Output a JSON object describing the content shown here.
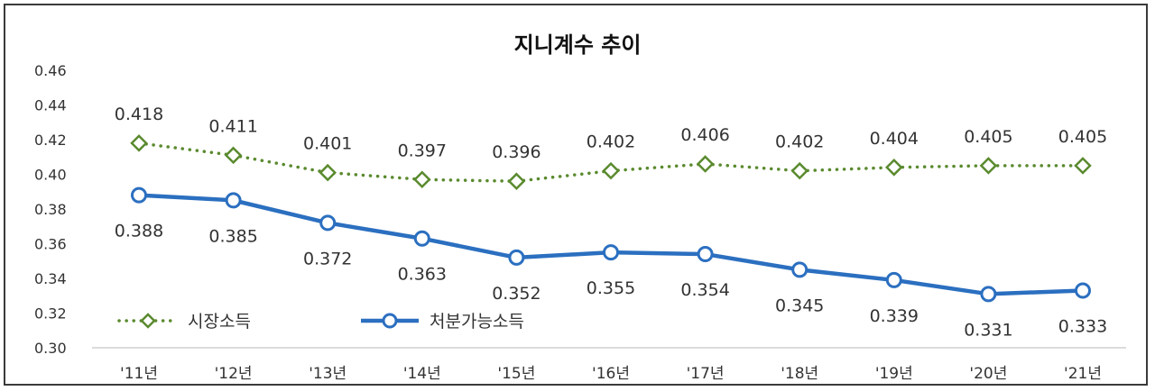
{
  "chart_data": {
    "type": "line",
    "title": "지니계수 추이",
    "xlabel": "",
    "ylabel": "",
    "categories": [
      "'11년",
      "'12년",
      "'13년",
      "'14년",
      "'15년",
      "'16년",
      "'17년",
      "'18년",
      "'19년",
      "'20년",
      "'21년"
    ],
    "ylim": [
      0.3,
      0.46
    ],
    "yticks": [
      "0.30",
      "0.32",
      "0.34",
      "0.36",
      "0.38",
      "0.40",
      "0.42",
      "0.44",
      "0.46"
    ],
    "grid": false,
    "legend_position": "bottom-left",
    "series": [
      {
        "name": "시장소득",
        "values": [
          0.418,
          0.411,
          0.401,
          0.397,
          0.396,
          0.402,
          0.406,
          0.402,
          0.404,
          0.405,
          0.405
        ],
        "labels": [
          "0.418",
          "0.411",
          "0.401",
          "0.397",
          "0.396",
          "0.402",
          "0.406",
          "0.402",
          "0.404",
          "0.405",
          "0.405"
        ],
        "color": "#5a8a2e",
        "marker": "diamond",
        "line_style": "dotted"
      },
      {
        "name": "처분가능소득",
        "values": [
          0.388,
          0.385,
          0.372,
          0.363,
          0.352,
          0.355,
          0.354,
          0.345,
          0.339,
          0.331,
          0.333
        ],
        "labels": [
          "0.388",
          "0.385",
          "0.372",
          "0.363",
          "0.352",
          "0.355",
          "0.354",
          "0.345",
          "0.339",
          "0.331",
          "0.333"
        ],
        "color": "#2b6fc0",
        "marker": "circle",
        "line_style": "solid"
      }
    ]
  }
}
